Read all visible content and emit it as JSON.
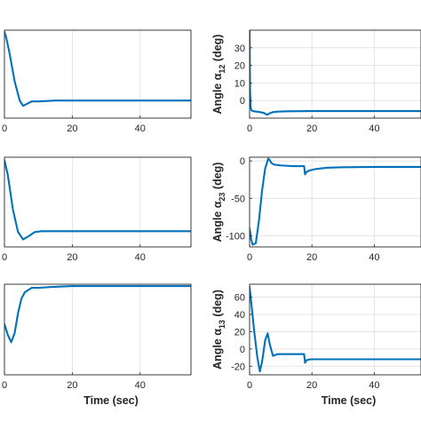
{
  "figure": {
    "colors": {
      "line": "#0072BD",
      "axis": "#262626",
      "grid": "#dfdfdf",
      "background": "#ffffff"
    }
  },
  "chart_data": [
    {
      "type": "line",
      "id": "left-top",
      "xlim": [
        0,
        55
      ],
      "ylim": [
        -3,
        2
      ],
      "xticks": [
        0,
        20,
        40
      ],
      "yticks": [],
      "xlabel": "",
      "ylabel": "",
      "grid": true,
      "series": [
        {
          "x": [
            0,
            0.5,
            1.5,
            3,
            4.5,
            5.5,
            6.5,
            8,
            10,
            15,
            25,
            40,
            55
          ],
          "y": [
            1.9,
            1.6,
            0.7,
            -0.9,
            -2.0,
            -2.3,
            -2.2,
            -2.05,
            -2.05,
            -2.0,
            -2.0,
            -2.0,
            -2.0
          ]
        }
      ]
    },
    {
      "type": "line",
      "id": "right-top",
      "xlim": [
        0,
        55
      ],
      "ylim": [
        -10,
        40
      ],
      "xticks": [
        0,
        20,
        40
      ],
      "yticks": [
        0,
        10,
        20,
        30
      ],
      "xlabel": "",
      "ylabel": {
        "text": "Angle α",
        "sub": "12",
        "unit": " (deg)"
      },
      "grid": true,
      "series": [
        {
          "x": [
            0,
            0.15,
            0.35,
            0.6,
            1,
            3,
            4.5,
            5.5,
            6,
            6.5,
            7.5,
            9,
            12,
            20,
            35,
            55
          ],
          "y": [
            40,
            5,
            -4,
            -5.5,
            -6,
            -6.5,
            -7,
            -8,
            -7.8,
            -7.2,
            -6.6,
            -6.3,
            -6.1,
            -6.0,
            -6.0,
            -6.0
          ]
        }
      ]
    },
    {
      "type": "line",
      "id": "left-middle",
      "xlim": [
        0,
        55
      ],
      "ylim": [
        -4,
        2
      ],
      "xticks": [
        0,
        20,
        40
      ],
      "yticks": [],
      "xlabel": "",
      "ylabel": "",
      "grid": true,
      "series": [
        {
          "x": [
            0,
            1,
            2.5,
            4,
            5.5,
            7,
            9,
            11,
            14,
            20,
            30,
            55
          ],
          "y": [
            1.8,
            0.8,
            -1.5,
            -3.0,
            -3.5,
            -3.3,
            -3.0,
            -2.95,
            -2.95,
            -2.95,
            -2.95,
            -2.95
          ]
        }
      ]
    },
    {
      "type": "line",
      "id": "right-middle",
      "xlim": [
        0,
        55
      ],
      "ylim": [
        -115,
        5
      ],
      "xticks": [
        0,
        20,
        40
      ],
      "yticks": [
        -100,
        -50,
        0
      ],
      "xlabel": "",
      "ylabel": {
        "text": "Angle α",
        "sub": "23",
        "unit": " (deg)"
      },
      "grid": true,
      "series": [
        {
          "x": [
            0,
            0.5,
            1,
            2,
            3,
            4,
            5,
            6,
            6.5,
            7,
            8,
            10,
            14,
            17.5,
            17.8,
            18.2,
            19,
            21,
            25,
            30,
            40,
            55
          ],
          "y": [
            -90,
            -105,
            -112,
            -110,
            -80,
            -40,
            -10,
            3,
            1,
            -3,
            -5,
            -6,
            -7,
            -7,
            -18,
            -15,
            -13,
            -11,
            -9,
            -8.5,
            -8,
            -8
          ]
        }
      ]
    },
    {
      "type": "line",
      "id": "left-bottom",
      "xlim": [
        0,
        55
      ],
      "ylim": [
        -4,
        1
      ],
      "xticks": [
        0,
        20,
        40
      ],
      "yticks": [],
      "xlabel": "Time (sec)",
      "ylabel": "",
      "grid": true,
      "series": [
        {
          "x": [
            0,
            1,
            2,
            3,
            4,
            5,
            6,
            8,
            10,
            14,
            20,
            30,
            55
          ],
          "y": [
            -1.2,
            -1.8,
            -2.2,
            -1.7,
            -0.6,
            0.2,
            0.55,
            0.8,
            0.8,
            0.85,
            0.9,
            0.9,
            0.9
          ]
        }
      ]
    },
    {
      "type": "line",
      "id": "right-bottom",
      "xlim": [
        0,
        55
      ],
      "ylim": [
        -30,
        75
      ],
      "xticks": [
        0,
        20,
        40
      ],
      "yticks": [
        -20,
        0,
        20,
        40,
        60
      ],
      "xlabel": "Time (sec)",
      "ylabel": {
        "text": "Angle α",
        "sub": "13",
        "unit": " (deg)"
      },
      "grid": true,
      "series": [
        {
          "x": [
            0,
            0.5,
            1.5,
            2.5,
            3.3,
            4,
            5,
            5.8,
            6.5,
            7.5,
            9,
            12,
            17.5,
            17.8,
            18.3,
            19.5,
            22,
            30,
            40,
            55
          ],
          "y": [
            72,
            55,
            20,
            -10,
            -26,
            -15,
            10,
            18,
            5,
            -8,
            -6,
            -6,
            -6,
            -16,
            -13,
            -12,
            -12,
            -12,
            -12,
            -12
          ]
        }
      ]
    }
  ]
}
